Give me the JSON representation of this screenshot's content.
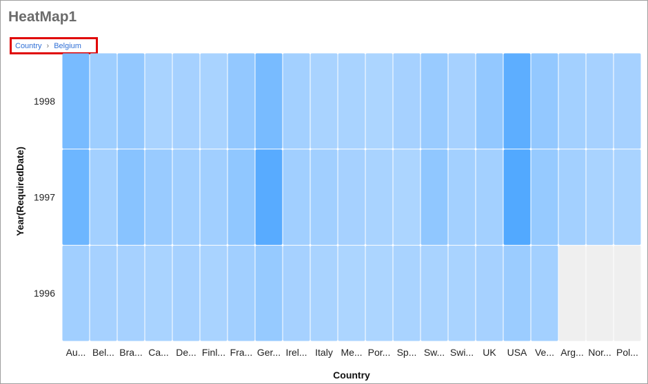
{
  "title": "HeatMap1",
  "breadcrumb": {
    "items": [
      "Country",
      "Belgium"
    ],
    "separator": "›"
  },
  "colors": {
    "scale": [
      "#b9dbff",
      "#4da6ff"
    ],
    "empty": "#efefef",
    "breadcrumb_border": "#e00000",
    "breadcrumb_text": "#2f6fd6"
  },
  "chart_data": {
    "type": "heatmap",
    "xlabel": "Country",
    "ylabel": "Year(RequiredDate)",
    "x": [
      "Au...",
      "Bel...",
      "Bra...",
      "Ca...",
      "De...",
      "Finl...",
      "Fra...",
      "Ger...",
      "Irel...",
      "Italy",
      "Me...",
      "Por...",
      "Sp...",
      "Sw...",
      "Swi...",
      "UK",
      "USA",
      "Ve...",
      "Arg...",
      "Nor...",
      "Pol..."
    ],
    "y": [
      "1998",
      "1997",
      "1996"
    ],
    "values": [
      [
        0.6,
        0.25,
        0.35,
        0.15,
        0.18,
        0.15,
        0.35,
        0.6,
        0.2,
        0.15,
        0.15,
        0.12,
        0.18,
        0.3,
        0.18,
        0.35,
        0.85,
        0.35,
        0.2,
        0.18,
        0.18
      ],
      [
        0.7,
        0.2,
        0.45,
        0.3,
        0.22,
        0.22,
        0.38,
        0.9,
        0.22,
        0.22,
        0.18,
        0.15,
        0.12,
        0.38,
        0.2,
        0.2,
        0.95,
        0.32,
        0.2,
        0.15,
        0.15
      ],
      [
        0.22,
        0.18,
        0.18,
        0.15,
        0.18,
        0.15,
        0.22,
        0.32,
        0.18,
        0.15,
        0.12,
        0.12,
        0.15,
        0.15,
        0.15,
        0.18,
        0.28,
        0.2,
        null,
        null,
        null
      ]
    ]
  }
}
